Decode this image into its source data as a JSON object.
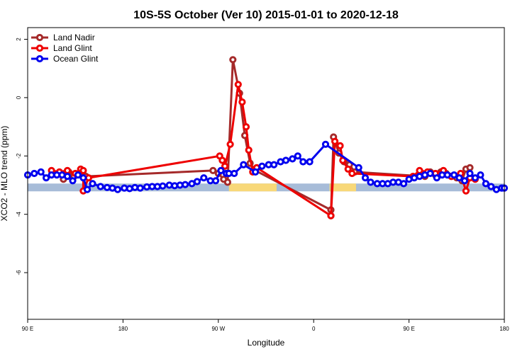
{
  "chart_data": {
    "type": "line",
    "title": "10S-5S October (Ver 10)   2015-01-01 to 2020-12-18",
    "xlabel": "Longitude",
    "ylabel": "XCO2 - MLO trend (ppm)",
    "xlim": [
      0,
      360
    ],
    "ylim": [
      -7.6,
      2.4
    ],
    "x_ticks": [
      {
        "value": 0,
        "label": "90 E"
      },
      {
        "value": 72,
        "label": "180"
      },
      {
        "value": 144,
        "label": "90 W"
      },
      {
        "value": 216,
        "label": "0"
      },
      {
        "value": 288,
        "label": "90 E"
      },
      {
        "value": 360,
        "label": "180"
      }
    ],
    "y_ticks": [
      {
        "value": 2,
        "label": "2"
      },
      {
        "value": 0,
        "label": "0"
      },
      {
        "value": -2,
        "label": "-2"
      },
      {
        "value": -4,
        "label": "-4"
      },
      {
        "value": -6,
        "label": "-6"
      }
    ],
    "legend_position": "top-left",
    "land_band": {
      "y": -3.08,
      "land_color": "#a7bcd8",
      "ocean_color": "#f8d878",
      "ocean_segments": [
        [
          152,
          188
        ],
        [
          228,
          248
        ]
      ]
    },
    "series": [
      {
        "name": "Land Nadir",
        "color": "#a52a2a",
        "points": [
          [
            27,
            -2.8
          ],
          [
            31,
            -2.55
          ],
          [
            35,
            -2.7
          ],
          [
            40,
            -2.55
          ],
          [
            44,
            -2.7
          ],
          [
            140,
            -2.5
          ],
          [
            144,
            -2.6
          ],
          [
            148,
            -2.8
          ],
          [
            151,
            -2.9
          ],
          [
            155,
            1.3
          ],
          [
            160,
            0.15
          ],
          [
            164,
            -1.3
          ],
          [
            168,
            -2.25
          ],
          [
            172,
            -2.5
          ],
          [
            229,
            -3.85
          ],
          [
            229,
            -4.05
          ],
          [
            231,
            -1.35
          ],
          [
            235,
            -1.9
          ],
          [
            239,
            -2.2
          ],
          [
            243,
            -2.3
          ],
          [
            247,
            -2.55
          ],
          [
            300,
            -2.7
          ],
          [
            304,
            -2.55
          ],
          [
            308,
            -2.65
          ],
          [
            312,
            -2.55
          ],
          [
            316,
            -2.6
          ],
          [
            320,
            -2.7
          ],
          [
            324,
            -2.75
          ],
          [
            328,
            -2.85
          ],
          [
            331,
            -2.45
          ],
          [
            334,
            -2.4
          ]
        ]
      },
      {
        "name": "Land Glint",
        "color": "#ee0000",
        "points": [
          [
            18,
            -2.5
          ],
          [
            24,
            -2.55
          ],
          [
            30,
            -2.5
          ],
          [
            36,
            -2.6
          ],
          [
            40,
            -2.45
          ],
          [
            42,
            -2.5
          ],
          [
            42,
            -3.2
          ],
          [
            46,
            -2.75
          ],
          [
            145,
            -2.0
          ],
          [
            147,
            -2.15
          ],
          [
            149,
            -2.35
          ],
          [
            153,
            -1.6
          ],
          [
            159,
            0.45
          ],
          [
            162,
            -0.15
          ],
          [
            165,
            -1.0
          ],
          [
            167,
            -1.8
          ],
          [
            170,
            -2.55
          ],
          [
            173,
            -2.4
          ],
          [
            229,
            -4.05
          ],
          [
            232,
            -1.5
          ],
          [
            236,
            -1.65
          ],
          [
            238,
            -2.15
          ],
          [
            242,
            -2.45
          ],
          [
            245,
            -2.6
          ],
          [
            291,
            -2.7
          ],
          [
            296,
            -2.5
          ],
          [
            302,
            -2.55
          ],
          [
            308,
            -2.6
          ],
          [
            314,
            -2.5
          ],
          [
            320,
            -2.7
          ],
          [
            327,
            -2.6
          ],
          [
            331,
            -3.2
          ],
          [
            334,
            -2.75
          ],
          [
            338,
            -2.8
          ]
        ]
      },
      {
        "name": "Ocean Glint",
        "color": "#0000ee",
        "points": [
          [
            0,
            -2.65
          ],
          [
            5,
            -2.6
          ],
          [
            10,
            -2.55
          ],
          [
            14,
            -2.75
          ],
          [
            18,
            -2.65
          ],
          [
            22,
            -2.65
          ],
          [
            26,
            -2.65
          ],
          [
            30,
            -2.7
          ],
          [
            34,
            -2.85
          ],
          [
            38,
            -2.65
          ],
          [
            42,
            -2.75
          ],
          [
            45,
            -3.15
          ],
          [
            49,
            -2.95
          ],
          [
            55,
            -3.05
          ],
          [
            60,
            -3.08
          ],
          [
            64,
            -3.1
          ],
          [
            68,
            -3.15
          ],
          [
            73,
            -3.1
          ],
          [
            77,
            -3.12
          ],
          [
            81,
            -3.08
          ],
          [
            85,
            -3.1
          ],
          [
            90,
            -3.06
          ],
          [
            94,
            -3.05
          ],
          [
            98,
            -3.05
          ],
          [
            102,
            -3.03
          ],
          [
            107,
            -3.0
          ],
          [
            111,
            -3.02
          ],
          [
            115,
            -3.0
          ],
          [
            119,
            -2.98
          ],
          [
            124,
            -2.95
          ],
          [
            128,
            -2.88
          ],
          [
            133,
            -2.75
          ],
          [
            138,
            -2.85
          ],
          [
            142,
            -2.85
          ],
          [
            146,
            -2.5
          ],
          [
            150,
            -2.6
          ],
          [
            152,
            -2.6
          ],
          [
            156,
            -2.6
          ],
          [
            163,
            -2.3
          ],
          [
            172,
            -2.55
          ],
          [
            177,
            -2.35
          ],
          [
            182,
            -2.3
          ],
          [
            186,
            -2.3
          ],
          [
            191,
            -2.2
          ],
          [
            195,
            -2.15
          ],
          [
            200,
            -2.1
          ],
          [
            204,
            -2.0
          ],
          [
            208,
            -2.2
          ],
          [
            213,
            -2.2
          ],
          [
            225,
            -1.6
          ],
          [
            250,
            -2.4
          ],
          [
            255,
            -2.75
          ],
          [
            259,
            -2.9
          ],
          [
            264,
            -2.95
          ],
          [
            268,
            -2.95
          ],
          [
            272,
            -2.95
          ],
          [
            276,
            -2.9
          ],
          [
            280,
            -2.9
          ],
          [
            284,
            -2.95
          ],
          [
            288,
            -2.8
          ],
          [
            292,
            -2.75
          ],
          [
            296,
            -2.7
          ],
          [
            300,
            -2.65
          ],
          [
            304,
            -2.6
          ],
          [
            309,
            -2.75
          ],
          [
            313,
            -2.65
          ],
          [
            317,
            -2.65
          ],
          [
            322,
            -2.65
          ],
          [
            326,
            -2.75
          ],
          [
            330,
            -2.85
          ],
          [
            334,
            -2.6
          ],
          [
            338,
            -2.75
          ],
          [
            342,
            -2.65
          ],
          [
            346,
            -2.95
          ],
          [
            350,
            -3.05
          ],
          [
            354,
            -3.15
          ],
          [
            358,
            -3.1
          ],
          [
            360,
            -3.1
          ]
        ]
      }
    ]
  }
}
